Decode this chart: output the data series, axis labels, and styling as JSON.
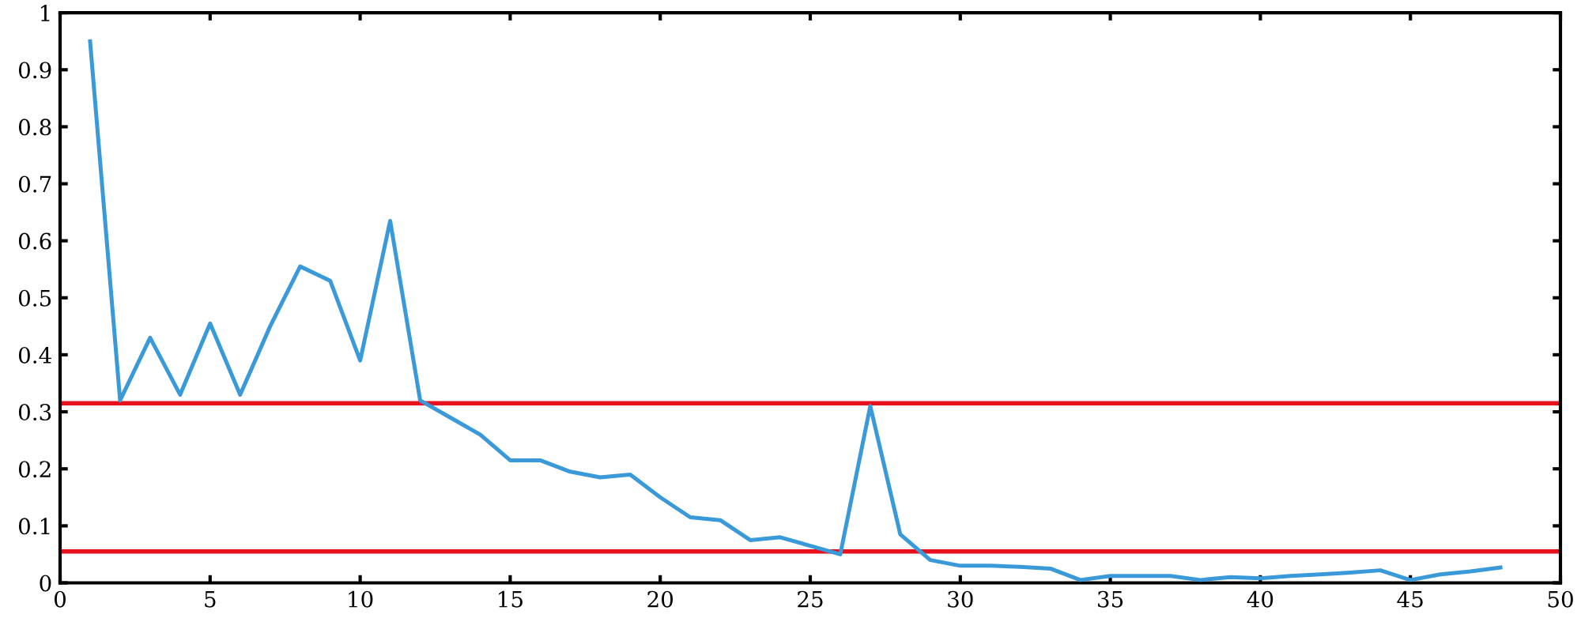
{
  "chart_data": {
    "type": "line",
    "x": [
      1,
      2,
      3,
      4,
      5,
      6,
      7,
      8,
      9,
      10,
      11,
      12,
      13,
      14,
      15,
      16,
      17,
      18,
      19,
      20,
      21,
      22,
      23,
      24,
      25,
      26,
      27,
      28,
      29,
      30,
      31,
      32,
      33,
      34,
      35,
      36,
      37,
      38,
      39,
      40,
      41,
      42,
      43,
      44,
      45,
      46,
      47,
      48
    ],
    "series": [
      {
        "color": "#3a9ad9",
        "values": [
          0.95,
          0.32,
          0.43,
          0.33,
          0.455,
          0.33,
          0.45,
          0.555,
          0.53,
          0.39,
          0.635,
          0.32,
          0.29,
          0.26,
          0.215,
          0.215,
          0.195,
          0.185,
          0.19,
          0.15,
          0.115,
          0.11,
          0.075,
          0.08,
          0.065,
          0.05,
          0.31,
          0.085,
          0.04,
          0.03,
          0.03,
          0.028,
          0.025,
          0.005,
          0.012,
          0.012,
          0.012,
          0.005,
          0.01,
          0.008,
          0.012,
          0.015,
          0.018,
          0.022,
          0.005,
          0.015,
          0.02,
          0.027
        ]
      }
    ],
    "xlim": [
      0,
      50
    ],
    "xticks": [
      0,
      5,
      10,
      15,
      20,
      25,
      30,
      35,
      40,
      45,
      50
    ],
    "ylim": [
      0,
      1
    ],
    "yticks": [
      0,
      0.1,
      0.2,
      0.3,
      0.4,
      0.5,
      0.6,
      0.7,
      0.8,
      0.9,
      1
    ],
    "ref_lines": [
      {
        "axis": "y",
        "value": 0.315,
        "color": "#e8101c"
      },
      {
        "axis": "y",
        "value": 0.055,
        "color": "#e8101c"
      }
    ],
    "grid": false,
    "legend": false,
    "marker": "none",
    "line_style": "solid"
  }
}
